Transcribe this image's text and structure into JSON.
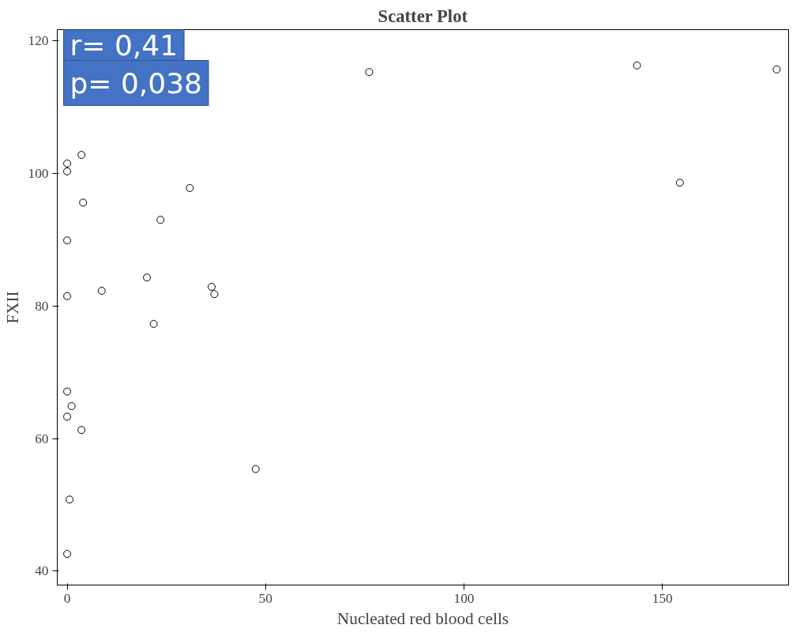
{
  "chart_data": {
    "type": "scatter",
    "title": "Scatter Plot",
    "xlabel": "Nucleated red blood cells",
    "ylabel": "FXII",
    "x": [
      76.1,
      143.6,
      178.8,
      154.4,
      0,
      0,
      3.6,
      4.0,
      30.9,
      23.5,
      0,
      8.7,
      20.1,
      0,
      36.4,
      37.1,
      21.8,
      0,
      1.1,
      0,
      3.6,
      47.5,
      0.6,
      0
    ],
    "values": [
      115.3,
      116.3,
      115.7,
      98.6,
      101.5,
      100.3,
      102.8,
      95.6,
      97.8,
      93.0,
      89.9,
      82.3,
      84.3,
      81.5,
      82.9,
      81.8,
      77.3,
      67.1,
      64.9,
      63.3,
      61.3,
      55.4,
      50.8,
      42.6
    ],
    "color": "#000000",
    "marker": "circle",
    "grid": false,
    "xlim": [
      -2.5,
      181.8
    ],
    "ylim": [
      37.9,
      121.7
    ],
    "xticks": [
      0,
      50,
      100,
      150
    ],
    "yticks": [
      40,
      60,
      80,
      100,
      120
    ],
    "annotations": [
      "r= 0,41",
      "p= 0,038"
    ]
  }
}
